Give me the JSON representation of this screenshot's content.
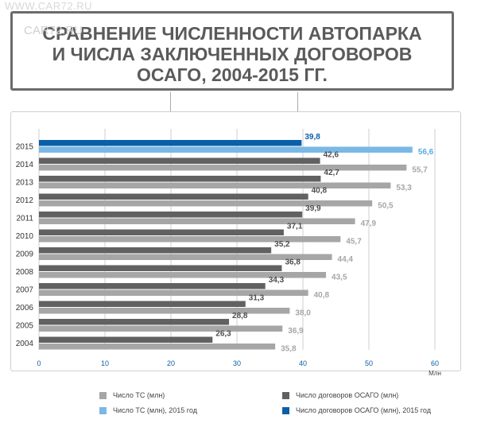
{
  "watermark": "WWW.CAR72.RU",
  "watermark2": "CAR72.RU",
  "title": "СРАВНЕНИЕ ЧИСЛЕННОСТИ АВТОПАРКА\nИ ЧИСЛА ЗАКЛЮЧЕННЫХ ДОГОВОРОВ\nОСАГО, 2004-2015 ГГ.",
  "colors": {
    "vehicles": "#a6a6a6",
    "vehicles_2015": "#7ab8e6",
    "contracts": "#616161",
    "contracts_2015": "#0b5fa8",
    "vehicles_label": "#a6a6a6",
    "contracts_label": "#4d4d4d",
    "vehicles_2015_label": "#5aaae6",
    "contracts_2015_label": "#0b5fa8"
  },
  "chart_data": {
    "type": "bar",
    "orientation": "horizontal",
    "categories": [
      "2015",
      "2014",
      "2013",
      "2012",
      "2011",
      "2010",
      "2009",
      "2008",
      "2007",
      "2006",
      "2005",
      "2004"
    ],
    "series": [
      {
        "name": "Число договоров ОСАГО (млн)",
        "values": [
          39.8,
          42.6,
          42.7,
          40.8,
          39.9,
          37.1,
          35.2,
          36.8,
          34.3,
          31.3,
          28.8,
          26.3
        ]
      },
      {
        "name": "Число ТС (млн)",
        "values": [
          56.6,
          55.7,
          53.3,
          50.5,
          47.9,
          45.7,
          44.4,
          43.5,
          40.8,
          38.0,
          36.9,
          35.8
        ]
      }
    ],
    "value_labels": {
      "contracts": [
        "39,8",
        "42,6",
        "42,7",
        "40,8",
        "39,9",
        "37,1",
        "35,2",
        "36,8",
        "34,3",
        "31,3",
        "28,8",
        "26,3"
      ],
      "vehicles": [
        "56,6",
        "55,7",
        "53,3",
        "50,5",
        "47,9",
        "45,7",
        "44,4",
        "43,5",
        "40,8",
        "38,0",
        "36,9",
        "35,8"
      ]
    },
    "xlim": [
      0,
      60
    ],
    "xticks": [
      "0",
      "10",
      "20",
      "30",
      "40",
      "50",
      "60"
    ],
    "xlabel": "Млн",
    "grid": true,
    "legend_position": "bottom"
  },
  "legend": [
    {
      "label": "Число ТС (млн)",
      "color": "#a6a6a6"
    },
    {
      "label": "Число договоров ОСАГО (млн)",
      "color": "#616161"
    },
    {
      "label": "Число ТС (млн), 2015 год",
      "color": "#7ab8e6"
    },
    {
      "label": "Число договоров ОСАГО (млн), 2015 год",
      "color": "#0b5fa8"
    }
  ]
}
